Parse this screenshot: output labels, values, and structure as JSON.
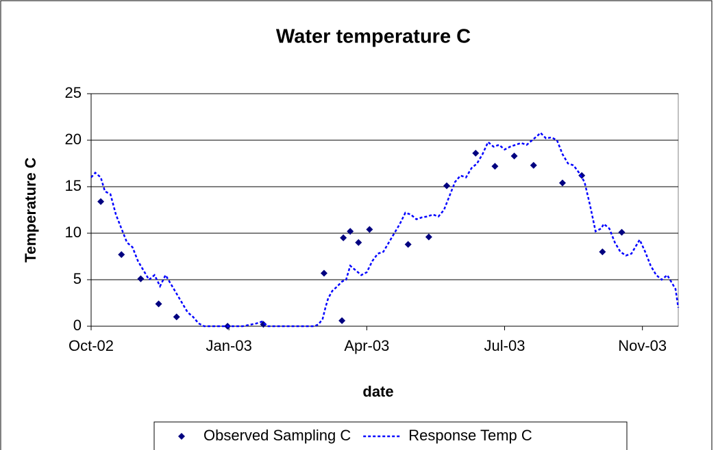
{
  "chart_data": {
    "type": "scatter-line",
    "title": "Water temperature C",
    "x_label": "date",
    "y_label": "Temperature C",
    "xlim": [
      0,
      426
    ],
    "xticks": [
      {
        "value": 0,
        "label": "Oct-02"
      },
      {
        "value": 100,
        "label": "Jan-03"
      },
      {
        "value": 200,
        "label": "Apr-03"
      },
      {
        "value": 300,
        "label": "Jul-03"
      },
      {
        "value": 400,
        "label": "Nov-03"
      }
    ],
    "ylim": [
      0,
      25
    ],
    "yticks": [
      0,
      5,
      10,
      15,
      20,
      25
    ],
    "grid": true,
    "legend": "bottom",
    "series": [
      {
        "name": "Observed Sampling C",
        "color": "#000080",
        "style": "markers",
        "x": [
          7,
          22,
          36,
          49,
          62,
          99,
          125,
          169,
          182,
          183,
          188,
          194,
          202,
          230,
          245,
          258,
          279,
          293,
          307,
          321,
          342,
          356,
          371,
          385
        ],
        "values": [
          13.4,
          7.7,
          5.1,
          2.4,
          1.0,
          0,
          0.2,
          5.7,
          0.6,
          9.5,
          10.2,
          9.0,
          10.4,
          8.8,
          9.6,
          15.1,
          18.6,
          17.2,
          18.3,
          17.3,
          15.4,
          16.2,
          8.0,
          10.1
        ]
      },
      {
        "name": "Response Temp C",
        "color": "#0000ff",
        "style": "dashed-line",
        "x": [
          0,
          3,
          7,
          10,
          14,
          18,
          22,
          26,
          30,
          34,
          38,
          42,
          46,
          50,
          54,
          58,
          62,
          66,
          70,
          74,
          78,
          82,
          90,
          100,
          110,
          120,
          124,
          128,
          135,
          145,
          155,
          162,
          165,
          168,
          170,
          172,
          175,
          178,
          182,
          185,
          188,
          192,
          196,
          200,
          204,
          208,
          212,
          216,
          220,
          224,
          228,
          232,
          236,
          240,
          244,
          248,
          252,
          256,
          260,
          264,
          268,
          272,
          276,
          280,
          284,
          288,
          292,
          296,
          300,
          304,
          308,
          312,
          316,
          320,
          324,
          326,
          330,
          334,
          338,
          342,
          346,
          350,
          354,
          358,
          362,
          366,
          370,
          372,
          376,
          380,
          384,
          388,
          392,
          396,
          398,
          402,
          406,
          410,
          414,
          418,
          422,
          424,
          426
        ],
        "values": [
          16.0,
          16.5,
          16.0,
          14.5,
          14.2,
          12.0,
          10.5,
          9.0,
          8.5,
          7.0,
          6.0,
          5.0,
          5.5,
          4.3,
          5.5,
          4.5,
          3.5,
          2.5,
          1.5,
          1.0,
          0.3,
          0,
          0,
          0,
          0,
          0.3,
          0.5,
          0,
          0,
          0,
          0,
          0,
          0.2,
          0.8,
          2.0,
          3.0,
          3.8,
          4.2,
          4.8,
          5.0,
          6.5,
          6.0,
          5.5,
          5.8,
          7.0,
          7.8,
          8.0,
          9.0,
          10.0,
          11.0,
          12.2,
          12.0,
          11.5,
          11.7,
          11.8,
          12.0,
          11.8,
          12.5,
          14.0,
          15.5,
          16.2,
          16.0,
          17.0,
          17.5,
          18.5,
          19.8,
          19.3,
          19.5,
          19.0,
          19.3,
          19.5,
          19.7,
          19.5,
          20.0,
          20.5,
          20.8,
          20.2,
          20.3,
          20.0,
          18.5,
          17.5,
          17.3,
          16.5,
          15.5,
          13.0,
          10.2,
          10.5,
          11.0,
          10.5,
          9.0,
          8.0,
          7.6,
          7.8,
          8.8,
          9.3,
          8.0,
          6.5,
          5.5,
          5.0,
          5.5,
          4.5,
          4.0,
          2.0
        ]
      }
    ]
  }
}
